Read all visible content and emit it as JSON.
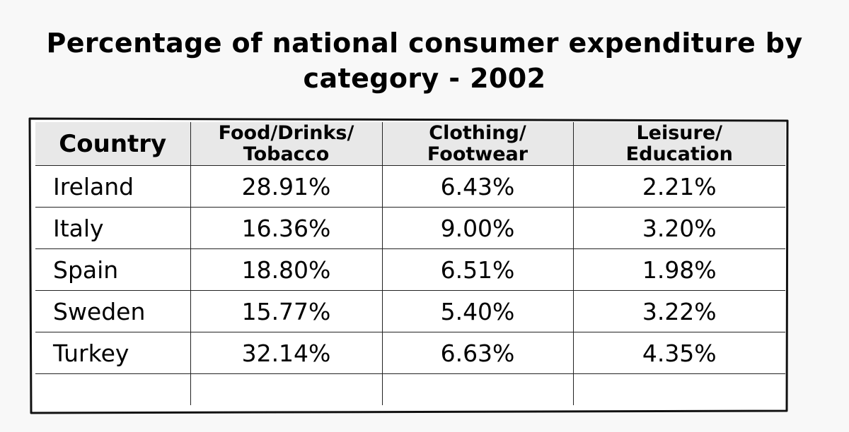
{
  "chart_data": {
    "type": "table",
    "title": "Percentage of national consumer expenditure by category - 2002",
    "title_lines": [
      "Percentage of national consumer expenditure by",
      "category - 2002"
    ],
    "columns": [
      {
        "lines": [
          "Country"
        ]
      },
      {
        "lines": [
          "Food/Drinks/",
          "Tobacco"
        ]
      },
      {
        "lines": [
          "Clothing/",
          "Footwear"
        ]
      },
      {
        "lines": [
          "Leisure/",
          "Education"
        ]
      }
    ],
    "rows": [
      {
        "country": "Ireland",
        "values": [
          "28.91%",
          "6.43%",
          "2.21%"
        ]
      },
      {
        "country": "Italy",
        "values": [
          "16.36%",
          "9.00%",
          "3.20%"
        ]
      },
      {
        "country": "Spain",
        "values": [
          "18.80%",
          "6.51%",
          "1.98%"
        ]
      },
      {
        "country": "Sweden",
        "values": [
          "15.77%",
          "5.40%",
          "3.22%"
        ]
      },
      {
        "country": "Turkey",
        "values": [
          "32.14%",
          "6.63%",
          "4.35%"
        ]
      }
    ]
  }
}
